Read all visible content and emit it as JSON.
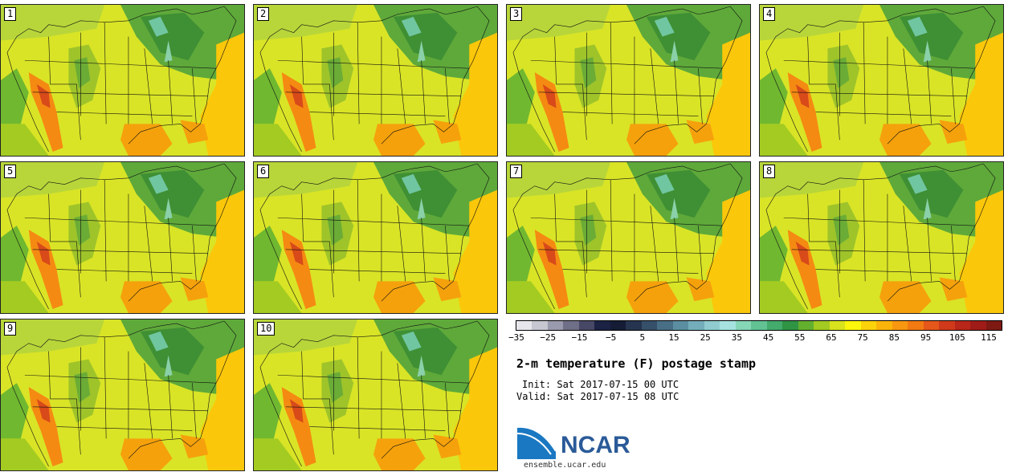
{
  "members": [
    "1",
    "2",
    "3",
    "4",
    "5",
    "6",
    "7",
    "8",
    "9",
    "10"
  ],
  "colorbar": {
    "colors": [
      "#e6e6ec",
      "#c7c7d2",
      "#9a9aae",
      "#6f6f88",
      "#474766",
      "#1c2244",
      "#151c35",
      "#26344f",
      "#36506a",
      "#486f85",
      "#5b8ea0",
      "#74aebb",
      "#90cccf",
      "#a6e3e0",
      "#86d6b8",
      "#62c294",
      "#43ab6c",
      "#2f9444",
      "#63b02e",
      "#a3cb21",
      "#d8e21d",
      "#fbf60b",
      "#fbd30b",
      "#fbb40a",
      "#f89810",
      "#f17a12",
      "#e5571a",
      "#d03a1a",
      "#b9261a",
      "#9f1c18",
      "#7e1914"
    ],
    "tick_labels": [
      "−35",
      "−25",
      "−15",
      "−5",
      "5",
      "15",
      "25",
      "35",
      "45",
      "55",
      "65",
      "75",
      "85",
      "95",
      "105",
      "115"
    ]
  },
  "title": "2-m temperature (F) postage stamp",
  "init": "Init: Sat 2017-07-15 00 UTC",
  "valid": "Valid: Sat 2017-07-15 08 UTC",
  "logo_text": "NCAR",
  "site": "ensemble.ucar.edu"
}
